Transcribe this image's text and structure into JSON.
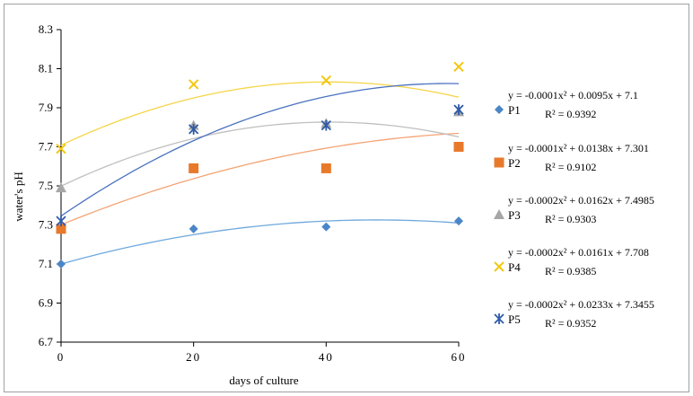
{
  "chart_data": {
    "type": "scatter",
    "xlabel": "days of culture",
    "ylabel": "water's pH",
    "x": [
      0,
      20,
      40,
      60
    ],
    "x_tick_labels": [
      "0",
      "20",
      "40",
      "60"
    ],
    "xlim": [
      0,
      60
    ],
    "ylim": [
      6.7,
      8.3
    ],
    "y_ticks": [
      "6.7",
      "6.9",
      "7.1",
      "7.3",
      "7.5",
      "7.7",
      "7.9",
      "8.1",
      "8.3"
    ],
    "grid": false,
    "legend_position": "right",
    "series": [
      {
        "name": "P1",
        "marker": "diamond",
        "color": "#4a86c8",
        "trend_color": "#6fa8dc",
        "values": [
          7.1,
          7.28,
          7.29,
          7.32
        ],
        "trendline": {
          "a": -0.0001,
          "b": 0.0095,
          "c": 7.1
        },
        "equation": "y = -0.0001x² + 0.0095x + 7.1",
        "r2": "R² = 0.9392"
      },
      {
        "name": "P2",
        "marker": "square",
        "color": "#e8792b",
        "trend_color": "#f4a373",
        "values": [
          7.28,
          7.59,
          7.59,
          7.7
        ],
        "trendline": {
          "a": -0.0001,
          "b": 0.0138,
          "c": 7.301
        },
        "equation": "y = -0.0001x² + 0.0138x + 7.301",
        "r2": "R² = 0.9102"
      },
      {
        "name": "P3",
        "marker": "triangle",
        "color": "#a6a6a6",
        "trend_color": "#bfbfbf",
        "values": [
          7.49,
          7.81,
          7.82,
          7.88
        ],
        "trendline": {
          "a": -0.0002,
          "b": 0.0162,
          "c": 7.4985
        },
        "equation": "y = -0.0002x² + 0.0162x + 7.4985",
        "r2": "R² = 0.9303"
      },
      {
        "name": "P4",
        "marker": "x",
        "color": "#f2c811",
        "trend_color": "#f5d547",
        "values": [
          7.69,
          8.02,
          8.04,
          8.11
        ],
        "trendline": {
          "a": -0.0002,
          "b": 0.0161,
          "c": 7.708
        },
        "equation": "y = -0.0002x² + 0.0161x + 7.708",
        "r2": "R² = 0.9385"
      },
      {
        "name": "P5",
        "marker": "asterisk",
        "color": "#2e5aa8",
        "trend_color": "#4a72c0",
        "values": [
          7.32,
          7.79,
          7.81,
          7.89
        ],
        "trendline": {
          "a": -0.0002,
          "b": 0.0233,
          "c": 7.3455
        },
        "equation": "y = -0.0002x² + 0.0233x + 7.3455",
        "r2": "R² = 0.9352"
      }
    ]
  }
}
